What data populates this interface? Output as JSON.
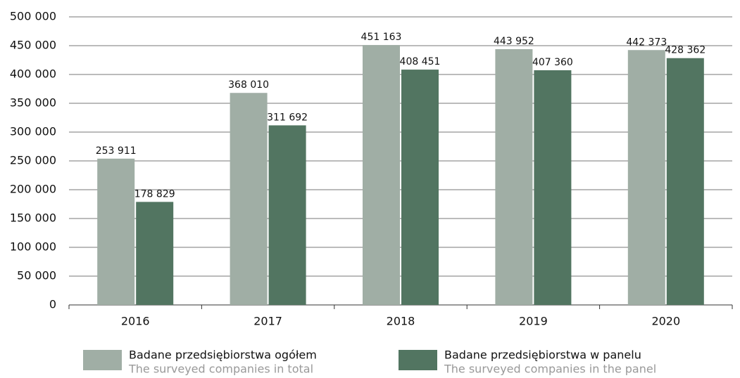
{
  "chart_data": {
    "type": "bar",
    "categories": [
      "2016",
      "2017",
      "2018",
      "2019",
      "2020"
    ],
    "series": [
      {
        "name": "Badane przedsiębiorstwa ogółem",
        "name_en": "The surveyed companies in total",
        "color": "#a0aea5",
        "values": [
          253911,
          368010,
          451163,
          443952,
          442373
        ],
        "value_labels": [
          "253 911",
          "368 010",
          "451 163",
          "443 952",
          "442 373"
        ]
      },
      {
        "name": "Badane przedsiębiorstwa w panelu",
        "name_en": "The surveyed companies in the panel",
        "color": "#527561",
        "values": [
          178829,
          311692,
          408451,
          407360,
          428362
        ],
        "value_labels": [
          "178 829",
          "311 692",
          "408 451",
          "407 360",
          "428 362"
        ]
      }
    ],
    "ylim": [
      0,
      500000
    ],
    "yticks": [
      0,
      {
        "value": 50000,
        "label": "50 000"
      },
      {
        "value": 100000,
        "label": "100 000"
      },
      {
        "value": 150000,
        "label": "150 000"
      },
      {
        "value": 200000,
        "label": "200 000"
      },
      {
        "value": 250000,
        "label": "250 000"
      },
      {
        "value": 300000,
        "label": "300 000"
      },
      {
        "value": 350000,
        "label": "350 000"
      },
      {
        "value": 400000,
        "label": "400 000"
      },
      {
        "value": 450000,
        "label": "450 000"
      },
      {
        "value": 500000,
        "label": "500 000"
      }
    ],
    "grid": true
  }
}
